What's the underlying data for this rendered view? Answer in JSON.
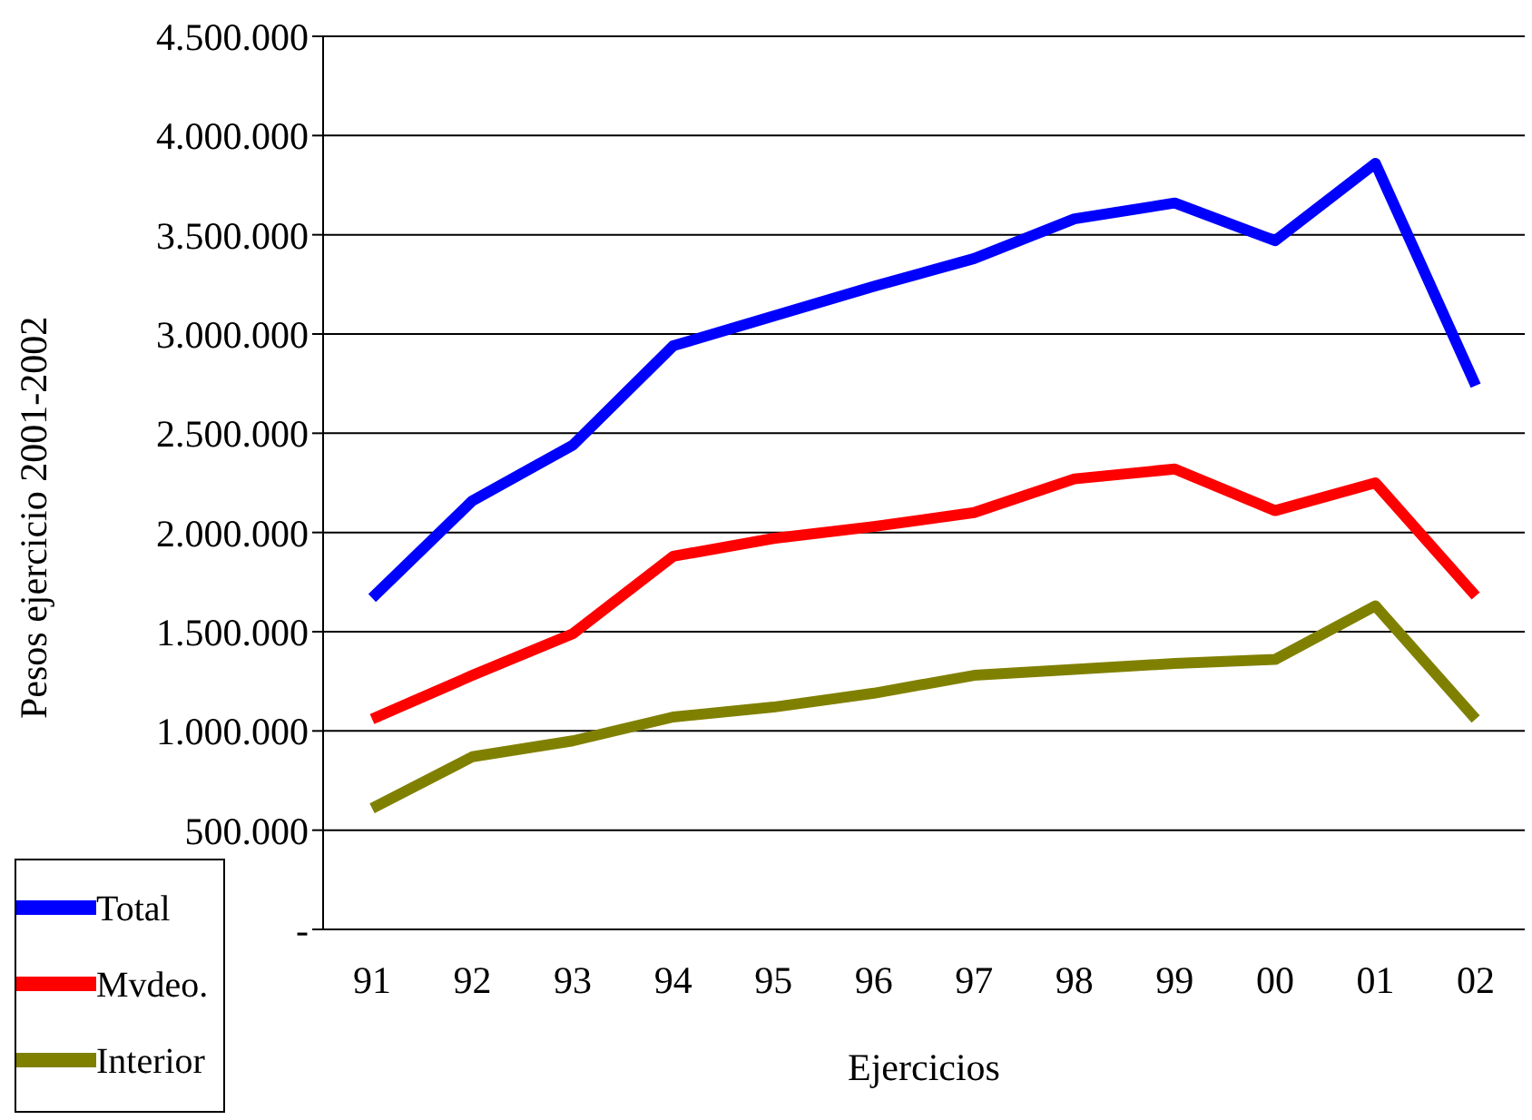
{
  "chart_data": {
    "type": "line",
    "xlabel": "Ejercicios",
    "ylabel": "Pesos ejercicio 2001-2002",
    "categories": [
      "91",
      "92",
      "93",
      "94",
      "95",
      "96",
      "97",
      "98",
      "99",
      "00",
      "01",
      "02"
    ],
    "series": [
      {
        "name": "Total",
        "color": "#0000ff",
        "values": [
          1670000,
          2160000,
          2440000,
          2940000,
          3090000,
          3240000,
          3380000,
          3580000,
          3660000,
          3470000,
          3860000,
          2740000
        ]
      },
      {
        "name": "Mvdeo.",
        "color": "#ff0000",
        "values": [
          1060000,
          1280000,
          1490000,
          1880000,
          1970000,
          2030000,
          2100000,
          2270000,
          2320000,
          2110000,
          2250000,
          1680000
        ]
      },
      {
        "name": "Interior",
        "color": "#808000",
        "values": [
          610000,
          870000,
          950000,
          1070000,
          1120000,
          1190000,
          1280000,
          1310000,
          1340000,
          1360000,
          1630000,
          1060000
        ]
      }
    ],
    "ylim": [
      0,
      4500000
    ],
    "yticks": [
      {
        "value": 0,
        "label": "-"
      },
      {
        "value": 500000,
        "label": "500.000"
      },
      {
        "value": 1000000,
        "label": "1.000.000"
      },
      {
        "value": 1500000,
        "label": "1.500.000"
      },
      {
        "value": 2000000,
        "label": "2.000.000"
      },
      {
        "value": 2500000,
        "label": "2.500.000"
      },
      {
        "value": 3000000,
        "label": "3.000.000"
      },
      {
        "value": 3500000,
        "label": "3.500.000"
      },
      {
        "value": 4000000,
        "label": "4.000.000"
      },
      {
        "value": 4500000,
        "label": "4.500.000"
      }
    ],
    "grid": "y",
    "legend": "bottom left",
    "marker": "none",
    "line_style": "solid"
  }
}
